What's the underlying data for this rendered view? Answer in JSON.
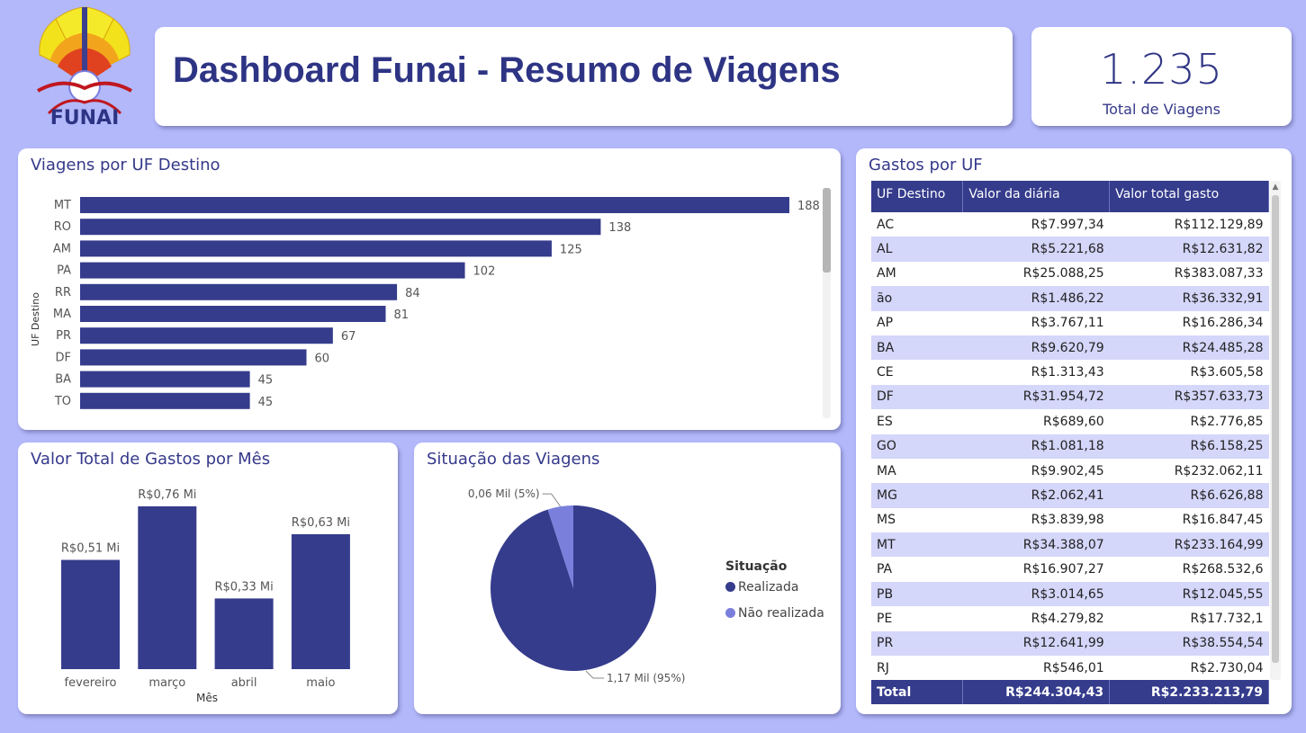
{
  "header": {
    "title": "Dashboard Funai - Resumo de Viagens",
    "logo_text": "FUNAI"
  },
  "kpi": {
    "value": "1.235",
    "label": "Total de Viagens"
  },
  "colors": {
    "bar": "#353c8c",
    "background": "#b3b8fb",
    "accent_light": "#7a7fdc",
    "row_alt": "#d4d6fa"
  },
  "chart_data": [
    {
      "type": "bar",
      "orientation": "horizontal",
      "title": "Viagens por UF Destino",
      "ylabel": "UF Destino",
      "categories": [
        "MT",
        "RO",
        "AM",
        "PA",
        "RR",
        "MA",
        "PR",
        "DF",
        "BA",
        "TO"
      ],
      "values": [
        188,
        138,
        125,
        102,
        84,
        81,
        67,
        60,
        45,
        45
      ],
      "xlim": [
        0,
        188
      ]
    },
    {
      "type": "bar",
      "title": "Valor Total de Gastos por Mês",
      "xlabel": "Mês",
      "categories": [
        "fevereiro",
        "março",
        "abril",
        "maio"
      ],
      "values": [
        0.51,
        0.76,
        0.33,
        0.63
      ],
      "labels": [
        "R$0,51 Mi",
        "R$0,76 Mi",
        "R$0,33 Mi",
        "R$0,63 Mi"
      ],
      "ylim": [
        0,
        0.76
      ]
    },
    {
      "type": "pie",
      "title": "Situação das Viagens",
      "legend_title": "Situação",
      "categories": [
        "Realizada",
        "Não realizada"
      ],
      "values": [
        95,
        5
      ],
      "labels": [
        "1,17 Mil (95%)",
        "0,06 Mil (5%)"
      ],
      "colors": [
        "#353c8c",
        "#7a7fdc"
      ]
    },
    {
      "type": "table",
      "title": "Gastos por UF",
      "columns": [
        "UF Destino",
        "Valor da diária",
        "Valor total gasto"
      ],
      "rows": [
        [
          "AC",
          "R$7.997,34",
          "R$112.129,89"
        ],
        [
          "AL",
          "R$5.221,68",
          "R$12.631,82"
        ],
        [
          "AM",
          "R$25.088,25",
          "R$383.087,33"
        ],
        [
          "ão",
          "R$1.486,22",
          "R$36.332,91"
        ],
        [
          "AP",
          "R$3.767,11",
          "R$16.286,34"
        ],
        [
          "BA",
          "R$9.620,79",
          "R$24.485,28"
        ],
        [
          "CE",
          "R$1.313,43",
          "R$3.605,58"
        ],
        [
          "DF",
          "R$31.954,72",
          "R$357.633,73"
        ],
        [
          "ES",
          "R$689,60",
          "R$2.776,85"
        ],
        [
          "GO",
          "R$1.081,18",
          "R$6.158,25"
        ],
        [
          "MA",
          "R$9.902,45",
          "R$232.062,11"
        ],
        [
          "MG",
          "R$2.062,41",
          "R$6.626,88"
        ],
        [
          "MS",
          "R$3.839,98",
          "R$16.847,45"
        ],
        [
          "MT",
          "R$34.388,07",
          "R$233.164,99"
        ],
        [
          "PA",
          "R$16.907,27",
          "R$268.532,6"
        ],
        [
          "PB",
          "R$3.014,65",
          "R$12.045,55"
        ],
        [
          "PE",
          "R$4.279,82",
          "R$17.732,1"
        ],
        [
          "PR",
          "R$12.641,99",
          "R$38.554,54"
        ],
        [
          "RJ",
          "R$546,01",
          "R$2.730,04"
        ]
      ],
      "total": [
        "Total",
        "R$244.304,43",
        "R$2.233.213,79"
      ]
    }
  ]
}
